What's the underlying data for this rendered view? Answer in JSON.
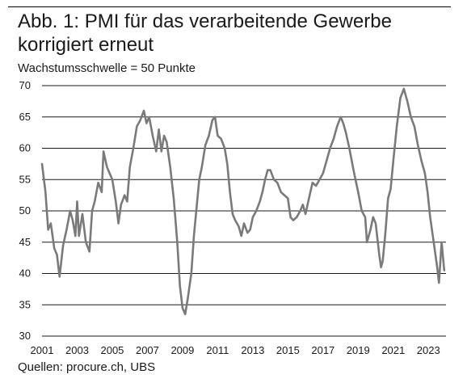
{
  "header": {
    "title": "Abb. 1: PMI für das verarbeitende Gewerbe korrigiert erneut",
    "subtitle": "Wachstumsschwelle = 50 Punkte"
  },
  "footer": {
    "source": "Quellen: procure.ch, UBS"
  },
  "colors": {
    "line": "#7a7a7a",
    "grid": "#1a1a1a"
  },
  "chart_data": {
    "type": "line",
    "title": "Abb. 1: PMI für das verarbeitende Gewerbe korrigiert erneut",
    "subtitle": "Wachstumsschwelle = 50 Punkte",
    "xlabel": "",
    "ylabel": "",
    "xlim": [
      2001,
      2024.0
    ],
    "ylim": [
      30,
      70
    ],
    "y_ticks": [
      30,
      35,
      40,
      45,
      50,
      55,
      60,
      65,
      70
    ],
    "x_ticks": [
      "2001",
      "2003",
      "2005",
      "2007",
      "2009",
      "2011",
      "2013",
      "2015",
      "2017",
      "2019",
      "2021",
      "2023"
    ],
    "grid": "horizontal",
    "series": [
      {
        "values": [
          [
            2001.0,
            57.5
          ],
          [
            2001.2,
            53.0
          ],
          [
            2001.35,
            47.0
          ],
          [
            2001.5,
            48.0
          ],
          [
            2001.7,
            44.0
          ],
          [
            2001.85,
            43.0
          ],
          [
            2002.0,
            39.5
          ],
          [
            2002.2,
            44.5
          ],
          [
            2002.4,
            47.0
          ],
          [
            2002.6,
            50.0
          ],
          [
            2002.75,
            48.5
          ],
          [
            2002.9,
            46.0
          ],
          [
            2003.0,
            51.5
          ],
          [
            2003.1,
            46.0
          ],
          [
            2003.3,
            49.5
          ],
          [
            2003.5,
            45.0
          ],
          [
            2003.7,
            43.5
          ],
          [
            2003.85,
            50.0
          ],
          [
            2004.0,
            51.5
          ],
          [
            2004.2,
            54.5
          ],
          [
            2004.4,
            53.0
          ],
          [
            2004.5,
            59.5
          ],
          [
            2004.7,
            57.0
          ],
          [
            2004.85,
            56.0
          ],
          [
            2005.0,
            55.0
          ],
          [
            2005.2,
            51.5
          ],
          [
            2005.35,
            48.0
          ],
          [
            2005.5,
            51.0
          ],
          [
            2005.7,
            52.5
          ],
          [
            2005.85,
            51.5
          ],
          [
            2006.0,
            57.0
          ],
          [
            2006.2,
            60.0
          ],
          [
            2006.4,
            63.5
          ],
          [
            2006.6,
            64.5
          ],
          [
            2006.8,
            66.0
          ],
          [
            2006.95,
            64.0
          ],
          [
            2007.1,
            65.0
          ],
          [
            2007.3,
            62.0
          ],
          [
            2007.5,
            59.5
          ],
          [
            2007.65,
            63.0
          ],
          [
            2007.8,
            59.5
          ],
          [
            2007.95,
            62.0
          ],
          [
            2008.1,
            61.0
          ],
          [
            2008.3,
            57.0
          ],
          [
            2008.5,
            52.0
          ],
          [
            2008.7,
            45.0
          ],
          [
            2008.85,
            38.0
          ],
          [
            2009.0,
            34.5
          ],
          [
            2009.15,
            33.5
          ],
          [
            2009.3,
            36.0
          ],
          [
            2009.5,
            40.0
          ],
          [
            2009.65,
            46.0
          ],
          [
            2009.8,
            50.5
          ],
          [
            2009.95,
            55.0
          ],
          [
            2010.1,
            57.0
          ],
          [
            2010.3,
            60.5
          ],
          [
            2010.5,
            62.0
          ],
          [
            2010.7,
            64.5
          ],
          [
            2010.85,
            65.0
          ],
          [
            2011.0,
            62.0
          ],
          [
            2011.2,
            61.5
          ],
          [
            2011.4,
            60.0
          ],
          [
            2011.55,
            57.5
          ],
          [
            2011.7,
            53.0
          ],
          [
            2011.85,
            49.5
          ],
          [
            2012.0,
            48.5
          ],
          [
            2012.2,
            47.5
          ],
          [
            2012.35,
            46.0
          ],
          [
            2012.5,
            48.0
          ],
          [
            2012.7,
            46.5
          ],
          [
            2012.85,
            47.0
          ],
          [
            2013.0,
            49.0
          ],
          [
            2013.2,
            50.0
          ],
          [
            2013.4,
            51.5
          ],
          [
            2013.55,
            53.0
          ],
          [
            2013.7,
            55.0
          ],
          [
            2013.85,
            56.5
          ],
          [
            2014.0,
            56.5
          ],
          [
            2014.2,
            55.0
          ],
          [
            2014.4,
            54.5
          ],
          [
            2014.6,
            53.0
          ],
          [
            2014.8,
            52.5
          ],
          [
            2015.0,
            52.0
          ],
          [
            2015.15,
            49.0
          ],
          [
            2015.3,
            48.5
          ],
          [
            2015.5,
            49.0
          ],
          [
            2015.7,
            50.0
          ],
          [
            2015.85,
            51.0
          ],
          [
            2016.0,
            49.5
          ],
          [
            2016.2,
            52.0
          ],
          [
            2016.4,
            54.5
          ],
          [
            2016.6,
            54.0
          ],
          [
            2016.8,
            55.0
          ],
          [
            2017.0,
            56.0
          ],
          [
            2017.2,
            58.0
          ],
          [
            2017.4,
            60.0
          ],
          [
            2017.6,
            61.5
          ],
          [
            2017.8,
            63.5
          ],
          [
            2018.0,
            65.0
          ],
          [
            2018.15,
            64.0
          ],
          [
            2018.3,
            62.5
          ],
          [
            2018.5,
            60.0
          ],
          [
            2018.7,
            57.0
          ],
          [
            2018.85,
            55.0
          ],
          [
            2019.0,
            53.0
          ],
          [
            2019.2,
            50.0
          ],
          [
            2019.4,
            49.0
          ],
          [
            2019.5,
            45.0
          ],
          [
            2019.7,
            47.0
          ],
          [
            2019.85,
            49.0
          ],
          [
            2020.0,
            48.0
          ],
          [
            2020.2,
            43.0
          ],
          [
            2020.3,
            41.0
          ],
          [
            2020.4,
            42.0
          ],
          [
            2020.55,
            46.5
          ],
          [
            2020.7,
            52.0
          ],
          [
            2020.85,
            53.5
          ],
          [
            2021.0,
            58.0
          ],
          [
            2021.2,
            63.5
          ],
          [
            2021.4,
            68.0
          ],
          [
            2021.6,
            69.5
          ],
          [
            2021.8,
            67.5
          ],
          [
            2022.0,
            65.0
          ],
          [
            2022.2,
            63.5
          ],
          [
            2022.4,
            60.5
          ],
          [
            2022.6,
            58.0
          ],
          [
            2022.8,
            56.0
          ],
          [
            2022.95,
            53.0
          ],
          [
            2023.1,
            49.0
          ],
          [
            2023.3,
            45.0
          ],
          [
            2023.5,
            41.0
          ],
          [
            2023.6,
            38.5
          ],
          [
            2023.75,
            45.0
          ],
          [
            2023.9,
            40.5
          ]
        ]
      }
    ]
  }
}
